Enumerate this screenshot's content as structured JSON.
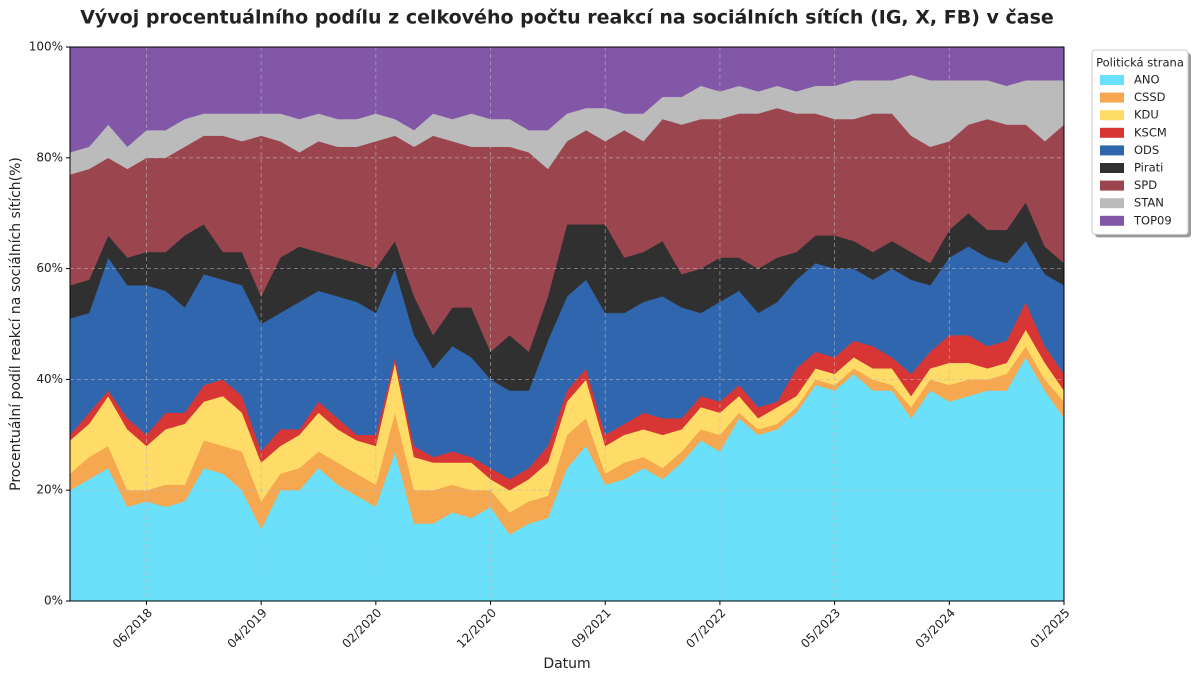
{
  "chart_data": {
    "type": "stacked_area",
    "title": "Vývoj procentuálního podílu z celkového počtu reakcí na sociálních sítích (IG, X, FB) v čase",
    "xlabel": "Datum",
    "ylabel": "Procentuální podíl reakcí na sociálních sítích(%)",
    "legend_title": "Politická strana",
    "legend_position": "upper right outside",
    "grid": true,
    "ylim": [
      0,
      100
    ],
    "yticks": [
      {
        "value": 0,
        "label": "0%"
      },
      {
        "value": 20,
        "label": "20%"
      },
      {
        "value": 40,
        "label": "40%"
      },
      {
        "value": 60,
        "label": "60%"
      },
      {
        "value": 80,
        "label": "80%"
      },
      {
        "value": 100,
        "label": "100%"
      }
    ],
    "categories": [
      null,
      null,
      null,
      null,
      "06/2018",
      null,
      null,
      null,
      null,
      null,
      "04/2019",
      null,
      null,
      null,
      null,
      null,
      "02/2020",
      null,
      null,
      null,
      null,
      null,
      "12/2020",
      null,
      null,
      null,
      null,
      null,
      "09/2021",
      null,
      null,
      null,
      null,
      null,
      "07/2022",
      null,
      null,
      null,
      null,
      null,
      "05/2023",
      null,
      null,
      null,
      null,
      null,
      "03/2024",
      null,
      null,
      null,
      null,
      null,
      "01/2025"
    ],
    "series": [
      {
        "name": "ANO",
        "color": "#6ae0fb",
        "values": [
          20,
          22,
          24,
          17,
          18,
          17,
          18,
          24,
          23,
          20,
          13,
          20,
          20,
          24,
          21,
          19,
          17,
          27,
          14,
          14,
          16,
          15,
          17,
          12,
          14,
          15,
          24,
          28,
          21,
          22,
          24,
          22,
          25,
          29,
          27,
          33,
          30,
          31,
          34,
          39,
          38,
          41,
          38,
          38,
          33,
          38,
          36,
          37,
          38,
          38,
          44,
          38,
          33
        ]
      },
      {
        "name": "CSSD",
        "color": "#f5a84f",
        "values": [
          3,
          4,
          4,
          3,
          2,
          4,
          3,
          5,
          5,
          7,
          5,
          3,
          4,
          3,
          4,
          4,
          4,
          7,
          6,
          6,
          5,
          5,
          3,
          4,
          4,
          4,
          6,
          5,
          2,
          3,
          2,
          2,
          2,
          2,
          3,
          1,
          1,
          1,
          1,
          1,
          1,
          1,
          2,
          1,
          2,
          2,
          3,
          3,
          2,
          3,
          2,
          2,
          3
        ]
      },
      {
        "name": "KDU",
        "color": "#fedc67",
        "values": [
          6,
          6,
          9,
          11,
          8,
          10,
          11,
          7,
          9,
          7,
          7,
          5,
          6,
          7,
          6,
          6,
          7,
          9,
          6,
          5,
          4,
          5,
          2,
          4,
          4,
          6,
          6,
          7,
          5,
          5,
          5,
          6,
          4,
          4,
          4,
          3,
          2,
          3,
          2,
          2,
          2,
          2,
          2,
          3,
          2,
          2,
          4,
          3,
          2,
          2,
          3,
          3,
          2
        ]
      },
      {
        "name": "KSCM",
        "color": "#d83535",
        "values": [
          1,
          2,
          1,
          2,
          2,
          3,
          2,
          3,
          3,
          3,
          2,
          3,
          1,
          2,
          2,
          1,
          2,
          1,
          2,
          1,
          2,
          1,
          2,
          2,
          2,
          3,
          2,
          2,
          2,
          2,
          3,
          3,
          2,
          2,
          2,
          2,
          2,
          1,
          5,
          3,
          3,
          3,
          4,
          2,
          4,
          3,
          5,
          5,
          4,
          4,
          5,
          3,
          3
        ]
      },
      {
        "name": "ODS",
        "color": "#2f66ad",
        "values": [
          21,
          18,
          24,
          24,
          27,
          22,
          19,
          20,
          18,
          20,
          23,
          21,
          23,
          20,
          22,
          24,
          22,
          16,
          20,
          16,
          19,
          18,
          16,
          16,
          14,
          19,
          17,
          16,
          22,
          20,
          20,
          22,
          20,
          15,
          18,
          17,
          17,
          18,
          16,
          16,
          16,
          13,
          12,
          16,
          17,
          12,
          14,
          16,
          16,
          14,
          11,
          13,
          16
        ]
      },
      {
        "name": "Pirati",
        "color": "#303030",
        "values": [
          6,
          6,
          4,
          5,
          6,
          7,
          13,
          9,
          5,
          6,
          5,
          10,
          10,
          7,
          7,
          7,
          8,
          5,
          7,
          6,
          7,
          9,
          5,
          10,
          7,
          8,
          13,
          10,
          16,
          10,
          9,
          10,
          6,
          8,
          8,
          6,
          8,
          8,
          5,
          5,
          6,
          5,
          5,
          5,
          5,
          4,
          5,
          6,
          5,
          6,
          7,
          5,
          4
        ]
      },
      {
        "name": "SPD",
        "color": "#9b464e",
        "values": [
          20,
          20,
          14,
          16,
          17,
          17,
          16,
          16,
          21,
          20,
          29,
          21,
          17,
          20,
          20,
          21,
          23,
          19,
          27,
          36,
          30,
          29,
          37,
          34,
          36,
          23,
          15,
          17,
          15,
          23,
          20,
          22,
          27,
          27,
          25,
          26,
          28,
          27,
          25,
          22,
          21,
          22,
          25,
          23,
          21,
          21,
          16,
          16,
          20,
          19,
          14,
          19,
          25
        ]
      },
      {
        "name": "STAN",
        "color": "#bbbbbb",
        "values": [
          4,
          4,
          6,
          4,
          5,
          5,
          5,
          4,
          4,
          5,
          4,
          5,
          6,
          5,
          5,
          5,
          5,
          3,
          3,
          4,
          4,
          6,
          5,
          5,
          4,
          7,
          5,
          4,
          6,
          3,
          5,
          4,
          5,
          6,
          5,
          5,
          4,
          4,
          4,
          5,
          6,
          7,
          6,
          6,
          11,
          12,
          11,
          8,
          7,
          7,
          8,
          11,
          8
        ]
      },
      {
        "name": "TOP09",
        "color": "#8357a8",
        "values": [
          19,
          18,
          14,
          18,
          15,
          15,
          13,
          12,
          12,
          12,
          12,
          12,
          13,
          12,
          13,
          13,
          12,
          13,
          15,
          12,
          13,
          12,
          13,
          13,
          15,
          15,
          12,
          11,
          11,
          12,
          12,
          9,
          9,
          7,
          8,
          7,
          8,
          7,
          8,
          7,
          7,
          6,
          6,
          6,
          5,
          6,
          6,
          6,
          6,
          7,
          6,
          6,
          6
        ]
      }
    ]
  }
}
